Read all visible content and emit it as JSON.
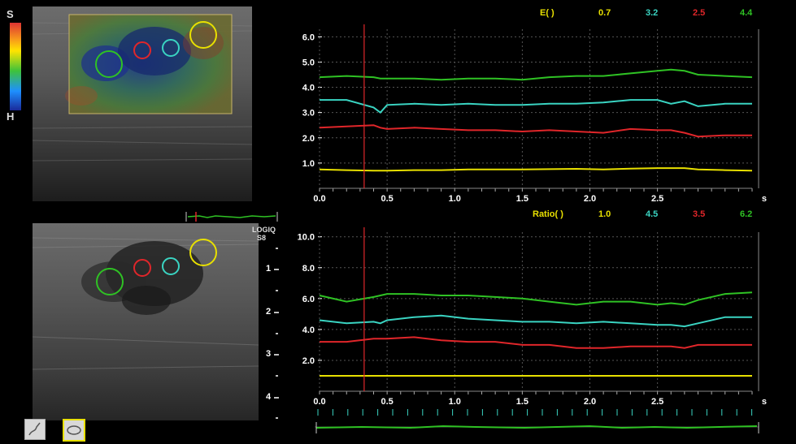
{
  "colorbar": {
    "top_label": "S",
    "bottom_label": "H"
  },
  "logiq": {
    "line1": "LOGIQ",
    "line2": "S8"
  },
  "chart_data": [
    {
      "type": "line",
      "title": "E( )",
      "x_unit": "s",
      "xlim": [
        0,
        3.2
      ],
      "ylim": [
        0,
        6.3
      ],
      "x_ticks": [
        "0.0",
        "0.5",
        "1.0",
        "1.5",
        "2.0",
        "2.5"
      ],
      "y_ticks": [
        "1.0",
        "2.0",
        "3.0",
        "4.0",
        "5.0",
        "6.0"
      ],
      "x": [
        0,
        0.2,
        0.4,
        0.45,
        0.5,
        0.7,
        0.9,
        1.1,
        1.3,
        1.5,
        1.7,
        1.9,
        2.1,
        2.3,
        2.5,
        2.6,
        2.7,
        2.8,
        3.0,
        3.2
      ],
      "series": [
        {
          "legend_value": "0.7",
          "color": "#e8e000",
          "values": [
            0.75,
            0.72,
            0.7,
            0.7,
            0.7,
            0.72,
            0.72,
            0.75,
            0.75,
            0.75,
            0.76,
            0.77,
            0.75,
            0.78,
            0.8,
            0.8,
            0.8,
            0.75,
            0.72,
            0.7
          ]
        },
        {
          "legend_value": "3.2",
          "color": "#3ad4c2",
          "values": [
            3.5,
            3.5,
            3.2,
            3.0,
            3.3,
            3.35,
            3.3,
            3.35,
            3.3,
            3.3,
            3.35,
            3.35,
            3.4,
            3.5,
            3.5,
            3.35,
            3.45,
            3.25,
            3.35,
            3.35
          ]
        },
        {
          "legend_value": "2.5",
          "color": "#e0262a",
          "values": [
            2.4,
            2.45,
            2.5,
            2.4,
            2.35,
            2.4,
            2.35,
            2.3,
            2.3,
            2.25,
            2.3,
            2.25,
            2.2,
            2.35,
            2.3,
            2.3,
            2.2,
            2.05,
            2.1,
            2.1
          ]
        },
        {
          "legend_value": "4.4",
          "color": "#2fc224",
          "values": [
            4.4,
            4.45,
            4.4,
            4.35,
            4.35,
            4.35,
            4.3,
            4.35,
            4.35,
            4.3,
            4.4,
            4.45,
            4.45,
            4.55,
            4.65,
            4.7,
            4.65,
            4.5,
            4.45,
            4.4
          ]
        }
      ]
    },
    {
      "type": "line",
      "title": "Ratio( )",
      "x_unit": "s",
      "xlim": [
        0,
        3.2
      ],
      "ylim": [
        0,
        10.3
      ],
      "x_ticks": [
        "0.0",
        "0.5",
        "1.0",
        "1.5",
        "2.0",
        "2.5"
      ],
      "y_ticks": [
        "2.0",
        "4.0",
        "6.0",
        "8.0",
        "10.0"
      ],
      "x": [
        0,
        0.2,
        0.4,
        0.45,
        0.5,
        0.7,
        0.9,
        1.1,
        1.3,
        1.5,
        1.7,
        1.9,
        2.1,
        2.3,
        2.5,
        2.6,
        2.7,
        2.8,
        3.0,
        3.2
      ],
      "series": [
        {
          "legend_value": "1.0",
          "color": "#e8e000",
          "values": [
            1.0,
            1.0,
            1.0,
            1.0,
            1.0,
            1.0,
            1.0,
            1.0,
            1.0,
            1.0,
            1.0,
            1.0,
            1.0,
            1.0,
            1.0,
            1.0,
            1.0,
            1.0,
            1.0,
            1.0
          ]
        },
        {
          "legend_value": "4.5",
          "color": "#3ad4c2",
          "values": [
            4.6,
            4.4,
            4.5,
            4.4,
            4.6,
            4.8,
            4.9,
            4.7,
            4.6,
            4.5,
            4.5,
            4.4,
            4.5,
            4.4,
            4.3,
            4.3,
            4.2,
            4.4,
            4.8,
            4.8
          ]
        },
        {
          "legend_value": "3.5",
          "color": "#e0262a",
          "values": [
            3.2,
            3.2,
            3.4,
            3.4,
            3.4,
            3.5,
            3.3,
            3.2,
            3.2,
            3.0,
            3.0,
            2.8,
            2.8,
            2.9,
            2.9,
            2.9,
            2.8,
            3.0,
            3.0,
            3.0
          ]
        },
        {
          "legend_value": "6.2",
          "color": "#2fc224",
          "values": [
            6.2,
            5.8,
            6.1,
            6.2,
            6.3,
            6.3,
            6.2,
            6.2,
            6.1,
            6.0,
            5.8,
            5.6,
            5.8,
            5.8,
            5.6,
            5.7,
            5.6,
            5.9,
            6.3,
            6.4
          ]
        }
      ]
    }
  ]
}
